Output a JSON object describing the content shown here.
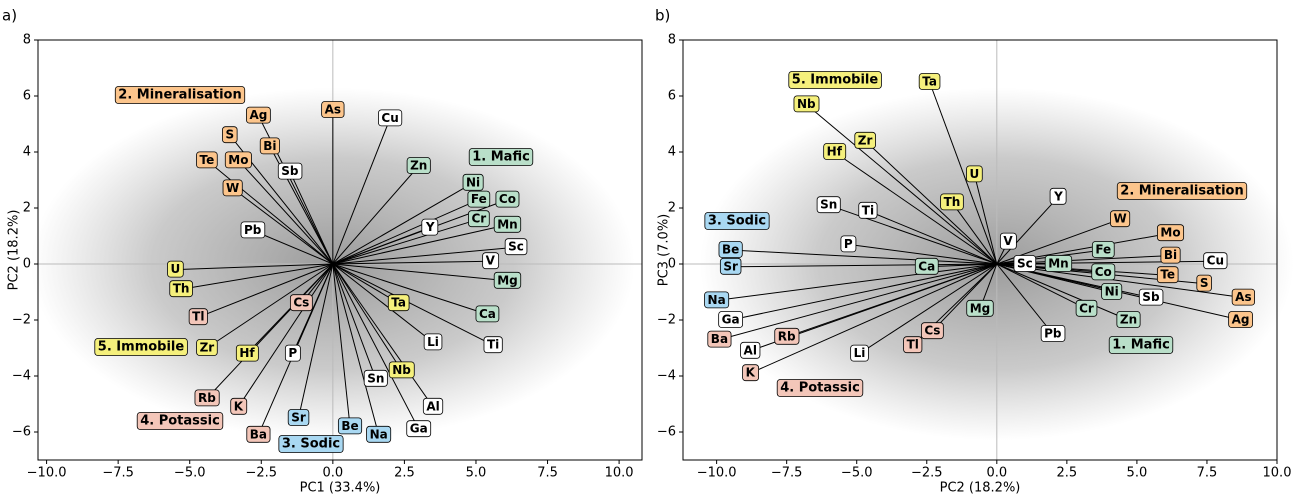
{
  "chart_data": [
    {
      "type": "biplot",
      "title": "a)",
      "x_label": "PC1 (33.4%)",
      "y_label": "PC2 (18.2%)",
      "xlim": [
        -10.3,
        10.8
      ],
      "ylim": [
        -7,
        8
      ],
      "xticks": [
        {
          "value": -10,
          "label": "−10.0"
        },
        {
          "value": -7.5,
          "label": "−7.5"
        },
        {
          "value": -5,
          "label": "−5.0"
        },
        {
          "value": -2.5,
          "label": "−2.5"
        },
        {
          "value": 0,
          "label": "0.0"
        },
        {
          "value": 2.5,
          "label": "2.5"
        },
        {
          "value": 5,
          "label": "5.0"
        },
        {
          "value": 7.5,
          "label": "7.5"
        },
        {
          "value": 10,
          "label": "10.0"
        }
      ],
      "yticks": [
        {
          "value": -6,
          "label": "−6"
        },
        {
          "value": -4,
          "label": "−4"
        },
        {
          "value": -2,
          "label": "−2"
        },
        0,
        2,
        4,
        6,
        8
      ],
      "groups": [
        {
          "name": "1. Mafic",
          "color": "#b9dfc9"
        },
        {
          "name": "2. Mineralisation",
          "color": "#fcc58c"
        },
        {
          "name": "3. Sodic",
          "color": "#a9d8f2"
        },
        {
          "name": "4. Potassic",
          "color": "#f3c6b9"
        },
        {
          "name": "5. Immobile",
          "color": "#f5f07c"
        }
      ],
      "loadings": [
        {
          "label": "Cu",
          "x": 2.0,
          "y": 5.2
        },
        {
          "label": "As",
          "x": 0,
          "y": 5.5,
          "group": 1
        },
        {
          "label": "Ag",
          "x": -2.6,
          "y": 5.3,
          "group": 1
        },
        {
          "label": "S",
          "x": -3.6,
          "y": 4.6,
          "group": 1
        },
        {
          "label": "Bi",
          "x": -2.2,
          "y": 4.2,
          "group": 1
        },
        {
          "label": "Te",
          "x": -4.4,
          "y": 3.7,
          "group": 1
        },
        {
          "label": "Mo",
          "x": -3.3,
          "y": 3.7,
          "group": 1
        },
        {
          "label": "Sb",
          "x": -1.5,
          "y": 3.3
        },
        {
          "label": "W",
          "x": -3.5,
          "y": 2.7,
          "group": 1
        },
        {
          "label": "Pb",
          "x": -2.8,
          "y": 1.2
        },
        {
          "label": "Zn",
          "x": 3.0,
          "y": 3.5,
          "group": 0
        },
        {
          "label": "Ni",
          "x": 4.9,
          "y": 2.9,
          "group": 0
        },
        {
          "label": "Co",
          "x": 6.1,
          "y": 2.3,
          "group": 0
        },
        {
          "label": "Fe",
          "x": 5.1,
          "y": 2.3,
          "group": 0
        },
        {
          "label": "Cr",
          "x": 5.1,
          "y": 1.6,
          "group": 0
        },
        {
          "label": "Mn",
          "x": 6.1,
          "y": 1.4,
          "group": 0
        },
        {
          "label": "Y",
          "x": 3.4,
          "y": 1.3
        },
        {
          "label": "Sc",
          "x": 6.4,
          "y": 0.6
        },
        {
          "label": "V",
          "x": 5.5,
          "y": 0.1
        },
        {
          "label": "Mg",
          "x": 6.1,
          "y": -0.6,
          "group": 0
        },
        {
          "label": "Ca",
          "x": 5.4,
          "y": -1.8,
          "group": 0
        },
        {
          "label": "Ti",
          "x": 5.6,
          "y": -2.9
        },
        {
          "label": "Ta",
          "x": 2.3,
          "y": -1.4,
          "group": 4
        },
        {
          "label": "Li",
          "x": 3.5,
          "y": -2.8
        },
        {
          "label": "Nb",
          "x": 2.4,
          "y": -3.8,
          "group": 4
        },
        {
          "label": "Sn",
          "x": 1.5,
          "y": -4.1
        },
        {
          "label": "Al",
          "x": 3.5,
          "y": -5.1
        },
        {
          "label": "Ga",
          "x": 3.0,
          "y": -5.9
        },
        {
          "label": "Na",
          "x": 1.6,
          "y": -6.1,
          "group": 2
        },
        {
          "label": "Be",
          "x": 0.6,
          "y": -5.8,
          "group": 2
        },
        {
          "label": "Sr",
          "x": -1.2,
          "y": -5.5,
          "group": 2
        },
        {
          "label": "Ba",
          "x": -2.6,
          "y": -6.1,
          "group": 3
        },
        {
          "label": "K",
          "x": -3.3,
          "y": -5.1,
          "group": 3
        },
        {
          "label": "Rb",
          "x": -4.4,
          "y": -4.8,
          "group": 3
        },
        {
          "label": "P",
          "x": -1.4,
          "y": -3.2
        },
        {
          "label": "Hf",
          "x": -3.0,
          "y": -3.2,
          "group": 4
        },
        {
          "label": "Zr",
          "x": -4.4,
          "y": -3.0,
          "group": 4
        },
        {
          "label": "Cs",
          "x": -1.1,
          "y": -1.4,
          "group": 3
        },
        {
          "label": "Tl",
          "x": -4.7,
          "y": -1.9,
          "group": 3
        },
        {
          "label": "Th",
          "x": -5.3,
          "y": -0.9,
          "group": 4
        },
        {
          "label": "U",
          "x": -5.5,
          "y": -0.2,
          "group": 4
        }
      ]
    },
    {
      "type": "biplot",
      "title": "b)",
      "x_label": "PC2 (18.2%)",
      "y_label": "PC3 (7.0%)",
      "xlim": [
        -11.2,
        10
      ],
      "ylim": [
        -7,
        8
      ],
      "xticks": [
        {
          "value": -10,
          "label": "−10.0"
        },
        {
          "value": -7.5,
          "label": "−7.5"
        },
        {
          "value": -5,
          "label": "−5.0"
        },
        {
          "value": -2.5,
          "label": "−2.5"
        },
        {
          "value": 0,
          "label": "0.0"
        },
        {
          "value": 2.5,
          "label": "2.5"
        },
        {
          "value": 5,
          "label": "5.0"
        },
        {
          "value": 7.5,
          "label": "7.5"
        },
        {
          "value": 10,
          "label": "10.0"
        }
      ],
      "yticks": [
        {
          "value": -6,
          "label": "−6"
        },
        {
          "value": -4,
          "label": "−4"
        },
        {
          "value": -2,
          "label": "−2"
        },
        0,
        2,
        4,
        6,
        8
      ],
      "groups": [
        {
          "name": "1. Mafic",
          "color": "#b9dfc9"
        },
        {
          "name": "2. Mineralisation",
          "color": "#fcc58c"
        },
        {
          "name": "3. Sodic",
          "color": "#a9d8f2"
        },
        {
          "name": "4. Potassic",
          "color": "#f3c6b9"
        },
        {
          "name": "5. Immobile",
          "color": "#f5f07c"
        }
      ],
      "loadings": [
        {
          "label": "Ta",
          "x": -2.4,
          "y": 6.5,
          "group": 4
        },
        {
          "label": "Nb",
          "x": -6.8,
          "y": 5.7,
          "group": 4
        },
        {
          "label": "Zr",
          "x": -4.7,
          "y": 4.4,
          "group": 4
        },
        {
          "label": "Hf",
          "x": -5.8,
          "y": 4.0,
          "group": 4
        },
        {
          "label": "U",
          "x": -0.8,
          "y": 3.2,
          "group": 4
        },
        {
          "label": "Th",
          "x": -1.6,
          "y": 2.2,
          "group": 4
        },
        {
          "label": "Y",
          "x": 2.2,
          "y": 2.4
        },
        {
          "label": "Sn",
          "x": -6.0,
          "y": 2.1
        },
        {
          "label": "Ti",
          "x": -4.6,
          "y": 1.9
        },
        {
          "label": "W",
          "x": 4.4,
          "y": 1.6,
          "group": 1
        },
        {
          "label": "Mo",
          "x": 6.2,
          "y": 1.1,
          "group": 1
        },
        {
          "label": "V",
          "x": 0.4,
          "y": 0.8
        },
        {
          "label": "P",
          "x": -5.3,
          "y": 0.7
        },
        {
          "label": "Fe",
          "x": 3.8,
          "y": 0.5,
          "group": 0
        },
        {
          "label": "Bi",
          "x": 6.2,
          "y": 0.3,
          "group": 1
        },
        {
          "label": "Be",
          "x": -9.5,
          "y": 0.5,
          "group": 2
        },
        {
          "label": "Cu",
          "x": 7.8,
          "y": 0.1
        },
        {
          "label": "Sc",
          "x": 1.0,
          "y": 0.0
        },
        {
          "label": "Mn",
          "x": 2.2,
          "y": 0.0,
          "group": 0
        },
        {
          "label": "Ca",
          "x": -2.5,
          "y": -0.1,
          "group": 0
        },
        {
          "label": "Sr",
          "x": -9.5,
          "y": -0.1,
          "group": 2
        },
        {
          "label": "Co",
          "x": 3.8,
          "y": -0.3,
          "group": 0
        },
        {
          "label": "Te",
          "x": 6.1,
          "y": -0.4,
          "group": 1
        },
        {
          "label": "S",
          "x": 7.4,
          "y": -0.7,
          "group": 1
        },
        {
          "label": "Ni",
          "x": 4.1,
          "y": -1.0,
          "group": 0
        },
        {
          "label": "Sb",
          "x": 5.5,
          "y": -1.2
        },
        {
          "label": "As",
          "x": 8.8,
          "y": -1.2,
          "group": 1
        },
        {
          "label": "Na",
          "x": -10.0,
          "y": -1.3,
          "group": 2
        },
        {
          "label": "Mg",
          "x": -0.6,
          "y": -1.6,
          "group": 0
        },
        {
          "label": "Cr",
          "x": 3.2,
          "y": -1.6,
          "group": 0
        },
        {
          "label": "Ag",
          "x": 8.7,
          "y": -2.0,
          "group": 1
        },
        {
          "label": "Ga",
          "x": -9.5,
          "y": -2.0
        },
        {
          "label": "Zn",
          "x": 4.7,
          "y": -2.0,
          "group": 0
        },
        {
          "label": "Pb",
          "x": 2.0,
          "y": -2.5
        },
        {
          "label": "Cs",
          "x": -2.3,
          "y": -2.4,
          "group": 3
        },
        {
          "label": "Rb",
          "x": -7.5,
          "y": -2.6,
          "group": 3
        },
        {
          "label": "Ba",
          "x": -9.9,
          "y": -2.7,
          "group": 3
        },
        {
          "label": "Tl",
          "x": -3.0,
          "y": -2.9,
          "group": 3
        },
        {
          "label": "Al",
          "x": -8.8,
          "y": -3.1
        },
        {
          "label": "Li",
          "x": -4.9,
          "y": -3.2
        },
        {
          "label": "K",
          "x": -8.8,
          "y": -3.9,
          "group": 3
        }
      ]
    }
  ]
}
